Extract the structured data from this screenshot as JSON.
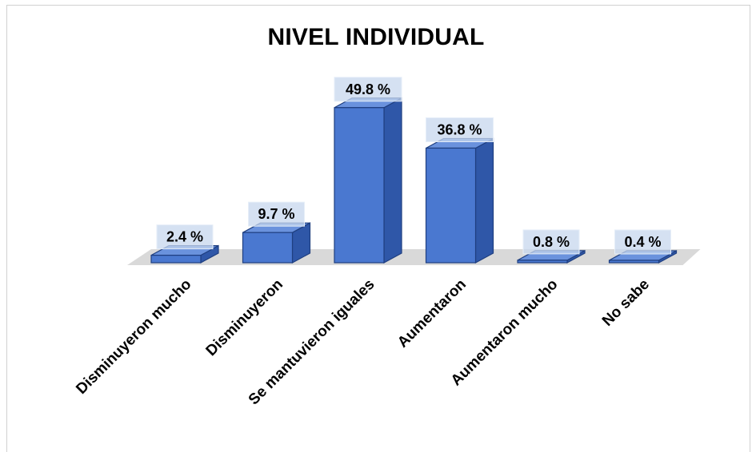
{
  "chart_data": {
    "type": "bar",
    "title": "NIVEL INDIVIDUAL",
    "categories": [
      "Disminuyeron mucho",
      "Disminuyeron",
      "Se mantuvieron iguales",
      "Aumentaron",
      "Aumentaron mucho",
      "No sabe"
    ],
    "values": [
      2.4,
      9.7,
      49.8,
      36.8,
      0.8,
      0.4
    ],
    "value_labels": [
      "2.4 %",
      "9.7 %",
      "49.8 %",
      "36.8 %",
      "0.8 %",
      "0.4 %"
    ],
    "ylim": [
      0,
      50
    ],
    "grid": false,
    "legend": "none",
    "style": "3d-column"
  },
  "colors": {
    "bar_front": "#4a78d0",
    "bar_side": "#2f57a8",
    "bar_top": "#6a92dd",
    "bar_edge": "#1f3f80",
    "floor": "#d9d9d9",
    "label_box": "#c7d7ee"
  }
}
